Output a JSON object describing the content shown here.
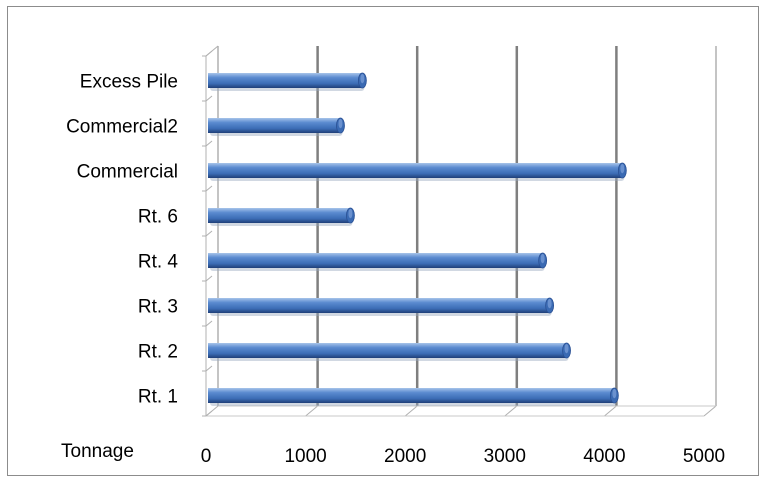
{
  "chart_data": {
    "type": "bar",
    "orientation": "horizontal",
    "style": "3d-cylinder",
    "categories": [
      "Rt. 1",
      "Rt. 2",
      "Rt. 3",
      "Rt. 4",
      "Rt. 6",
      "Commercial",
      "Commercial2",
      "Excess Pile"
    ],
    "values": [
      4100,
      3620,
      3450,
      3380,
      1450,
      4180,
      1350,
      1570
    ],
    "xlabel": "Tonnage",
    "xlim": [
      0,
      5000
    ],
    "xticks": [
      "0",
      "1000",
      "2000",
      "3000",
      "4000",
      "5000"
    ],
    "grid": "vertical",
    "legend": "none",
    "colors": {
      "bar": "#4a7bc4",
      "bar_dark": "#1f3f78",
      "bar_light": "#a8c4ea",
      "grid": "#7f7f7f"
    }
  }
}
